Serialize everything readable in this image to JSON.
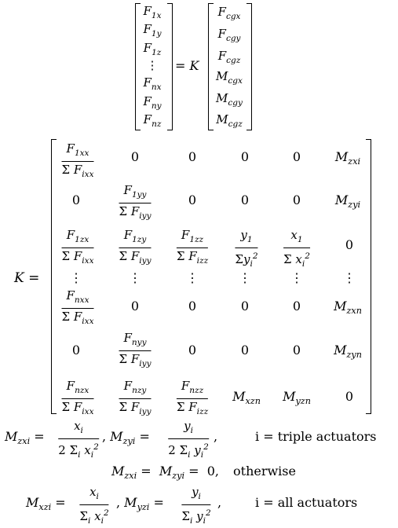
{
  "top_equation": {
    "left_vector": [
      "F1x",
      "F1y",
      "F1z",
      "⋮",
      "Fnx",
      "Fny",
      "Fnz"
    ],
    "equals_K": "= K",
    "right_vector": [
      "Fcgx",
      "Fcgy",
      "Fcgz",
      "Mcgx",
      "Mcgy",
      "Mcgz"
    ]
  },
  "matrix": {
    "lhs": "K =",
    "rows": [
      [
        "F1xx/ΣFixx",
        "0",
        "0",
        "0",
        "0",
        "Mzxi"
      ],
      [
        "0",
        "F1yy/ΣFiyy",
        "0",
        "0",
        "0",
        "Mzyi"
      ],
      [
        "F1zx/ΣFixx",
        "F1zy/ΣFiyy",
        "F1zz/ΣFizz",
        "y1/Σyi²",
        "x1/Σxi²",
        "0"
      ],
      [
        "⋮",
        "⋮",
        "⋮",
        "⋮",
        "⋮",
        "⋮"
      ],
      [
        "Fnxx/ΣFixx",
        "0",
        "0",
        "0",
        "0",
        "Mzxn"
      ],
      [
        "0",
        "Fnyy/ΣFiyy",
        "0",
        "0",
        "0",
        "Mzyn"
      ],
      [
        "Fnzx/ΣFixx",
        "Fnzy/ΣFiyy",
        "Fnzz/ΣFizz",
        "Mxzn",
        "Myzn",
        "0"
      ]
    ]
  },
  "conditions": {
    "line1_rhs": "i = triple actuators",
    "line2": "Mzxi = Mzyi = 0,",
    "line2_rhs": "otherwise",
    "line3_rhs": "i = all actuators"
  }
}
